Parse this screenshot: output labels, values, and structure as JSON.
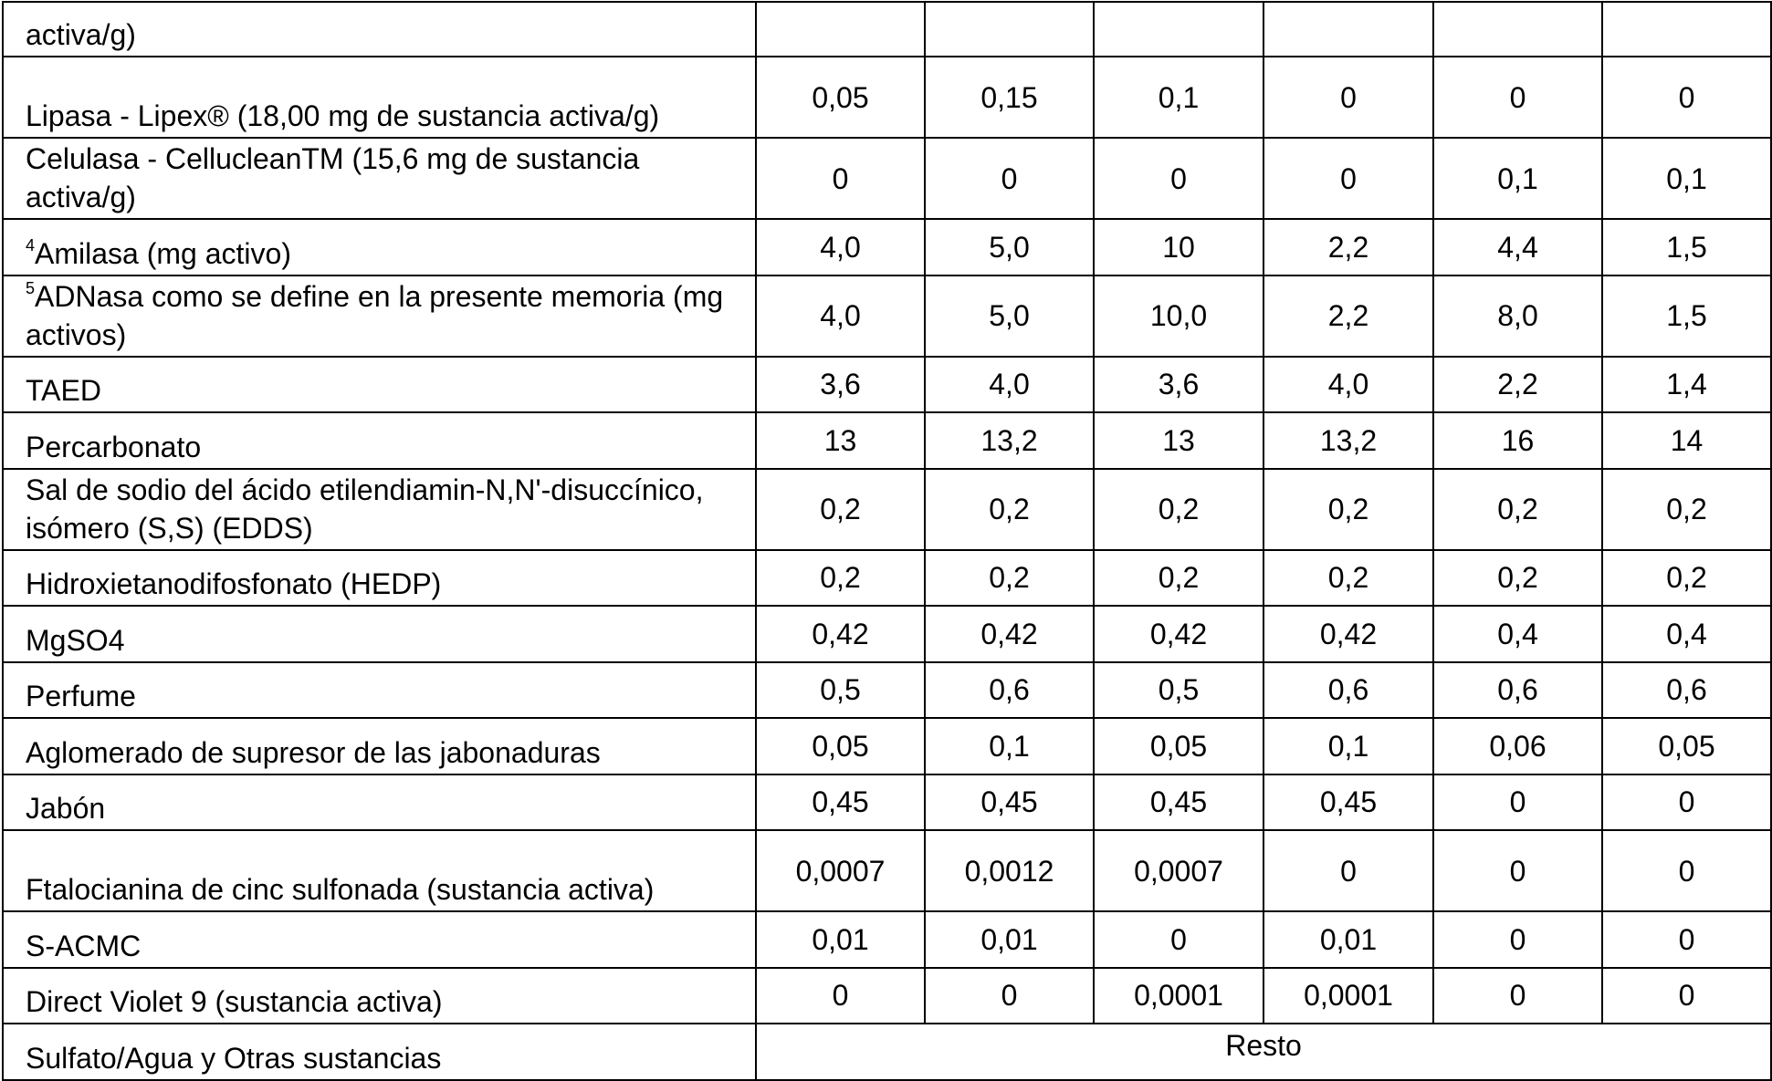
{
  "table": {
    "rows": [
      {
        "label": "activa/g)",
        "values": []
      },
      {
        "label": "Lipasa - Lipex® (18,00 mg de sustancia activa/g)",
        "values": [
          "0,05",
          "0,15",
          "0,1",
          "0",
          "0",
          "0"
        ]
      },
      {
        "label": "Celulasa - CellucleanTM (15,6 mg de sustancia activa/g)",
        "values": [
          "0",
          "0",
          "0",
          "0",
          "0,1",
          "0,1"
        ]
      },
      {
        "sup": "4",
        "label": "Amilasa (mg activo)",
        "values": [
          "4,0",
          "5,0",
          "10",
          "2,2",
          "4,4",
          "1,5"
        ]
      },
      {
        "sup": "5",
        "label": "ADNasa como se define en la presente memoria (mg activos)",
        "values": [
          "4,0",
          "5,0",
          "10,0",
          "2,2",
          "8,0",
          "1,5"
        ]
      },
      {
        "label": "TAED",
        "values": [
          "3,6",
          "4,0",
          "3,6",
          "4,0",
          "2,2",
          "1,4"
        ]
      },
      {
        "label": "Percarbonato",
        "values": [
          "13",
          "13,2",
          "13",
          "13,2",
          "16",
          "14"
        ]
      },
      {
        "label": "Sal de sodio del ácido etilendiamin-N,N'-disuccínico, isómero (S,S) (EDDS)",
        "values": [
          "0,2",
          "0,2",
          "0,2",
          "0,2",
          "0,2",
          "0,2"
        ]
      },
      {
        "label": "Hidroxietanodifosfonato (HEDP)",
        "values": [
          "0,2",
          "0,2",
          "0,2",
          "0,2",
          "0,2",
          "0,2"
        ]
      },
      {
        "label": "MgSO4",
        "values": [
          "0,42",
          "0,42",
          "0,42",
          "0,42",
          "0,4",
          "0,4"
        ]
      },
      {
        "label": "Perfume",
        "values": [
          "0,5",
          "0,6",
          "0,5",
          "0,6",
          "0,6",
          "0,6"
        ]
      },
      {
        "label": "Aglomerado de supresor de las jabonaduras",
        "values": [
          "0,05",
          "0,1",
          "0,05",
          "0,1",
          "0,06",
          "0,05"
        ]
      },
      {
        "label": "Jabón",
        "values": [
          "0,45",
          "0,45",
          "0,45",
          "0,45",
          "0",
          "0"
        ]
      },
      {
        "label": "Ftalocianina de cinc sulfonada (sustancia activa)",
        "values": [
          "0,0007",
          "0,0012",
          "0,0007",
          "0",
          "0",
          "0"
        ]
      },
      {
        "label": "S-ACMC",
        "values": [
          "0,01",
          "0,01",
          "0",
          "0,01",
          "0",
          "0"
        ]
      },
      {
        "label": "Direct Violet 9 (sustancia activa)",
        "values": [
          "0",
          "0",
          "0,0001",
          "0,0001",
          "0",
          "0"
        ]
      },
      {
        "label": "Sulfato/Agua y Otras sustancias",
        "span": "Resto"
      }
    ]
  }
}
